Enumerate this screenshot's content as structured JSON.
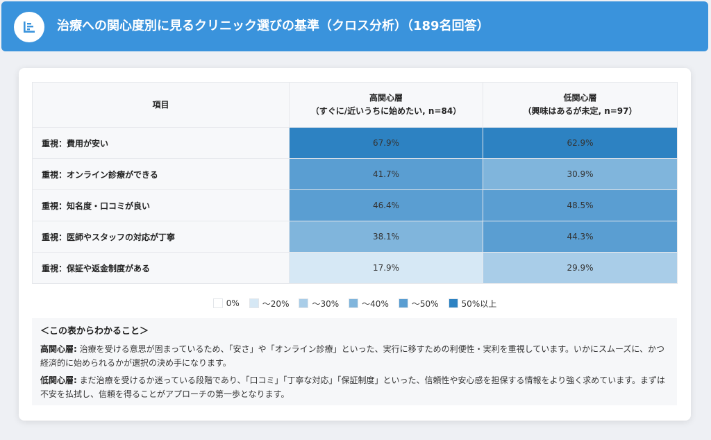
{
  "header": {
    "title": "治療への関心度別に見るクリニック選びの基準（クロス分析）（189名回答）",
    "icon": "bar-list-icon"
  },
  "table": {
    "col_item": "項目",
    "col_high_line1": "高関心層",
    "col_high_line2": "（すぐに/近いうちに始めたい, n=84）",
    "col_low_line1": "低関心層",
    "col_low_line2": "（興味はあるが未定, n=97）"
  },
  "chart_data": {
    "type": "heatmap",
    "title": "治療への関心度別に見るクリニック選びの基準（クロス分析）（189名回答）",
    "rows": [
      "重視：費用が安い",
      "重視：オンライン診療ができる",
      "重視：知名度・口コミが良い",
      "重視：医師やスタッフの対応が丁寧",
      "重視：保証や返金制度がある"
    ],
    "columns": [
      "高関心層",
      "低関心層"
    ],
    "values": [
      [
        67.9,
        62.9
      ],
      [
        41.7,
        30.9
      ],
      [
        46.4,
        48.5
      ],
      [
        38.1,
        44.3
      ],
      [
        17.9,
        29.9
      ]
    ],
    "labels": [
      [
        "67.9%",
        "62.9%"
      ],
      [
        "41.7%",
        "30.9%"
      ],
      [
        "46.4%",
        "48.5%"
      ],
      [
        "38.1%",
        "44.3%"
      ],
      [
        "17.9%",
        "29.9%"
      ]
    ],
    "legend": [
      {
        "label": "0%",
        "color": "#ffffff"
      },
      {
        "label": "〜20%",
        "color": "#d6e8f5"
      },
      {
        "label": "〜30%",
        "color": "#a9cde8"
      },
      {
        "label": "〜40%",
        "color": "#80b5dc"
      },
      {
        "label": "〜50%",
        "color": "#5a9ed2"
      },
      {
        "label": "50%以上",
        "color": "#2d82c2"
      }
    ],
    "legend_position": "bottom"
  },
  "notes": {
    "title": "＜この表からわかること＞",
    "items": [
      {
        "label": "高関心層:",
        "text": "治療を受ける意思が固まっているため、「安さ」や「オンライン診療」といった、実行に移すための利便性・実利を重視しています。いかにスムーズに、かつ経済的に始められるかが選択の決め手になります。"
      },
      {
        "label": "低関心層:",
        "text": "まだ治療を受けるか迷っている段階であり、「口コミ」「丁寧な対応」「保証制度」といった、信頼性や安心感を担保する情報をより強く求めています。まずは不安を払拭し、信頼を得ることがアプローチの第一歩となります。"
      }
    ]
  }
}
